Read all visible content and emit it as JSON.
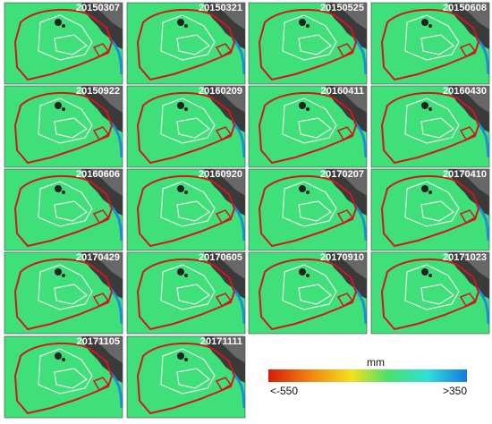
{
  "panels": [
    {
      "label": "20150307"
    },
    {
      "label": "20150321"
    },
    {
      "label": "20150525"
    },
    {
      "label": "20150608"
    },
    {
      "label": "20150922"
    },
    {
      "label": "20160209"
    },
    {
      "label": "20160411"
    },
    {
      "label": "20160430"
    },
    {
      "label": "20160606"
    },
    {
      "label": "20160920"
    },
    {
      "label": "20170207"
    },
    {
      "label": "20170410"
    },
    {
      "label": "20170429"
    },
    {
      "label": "20170605"
    },
    {
      "label": "20170910"
    },
    {
      "label": "20171023"
    },
    {
      "label": "20171105"
    },
    {
      "label": "20171111"
    }
  ],
  "colorbar": {
    "title": "mm",
    "min_label": "<-550",
    "max_label": ">350"
  }
}
